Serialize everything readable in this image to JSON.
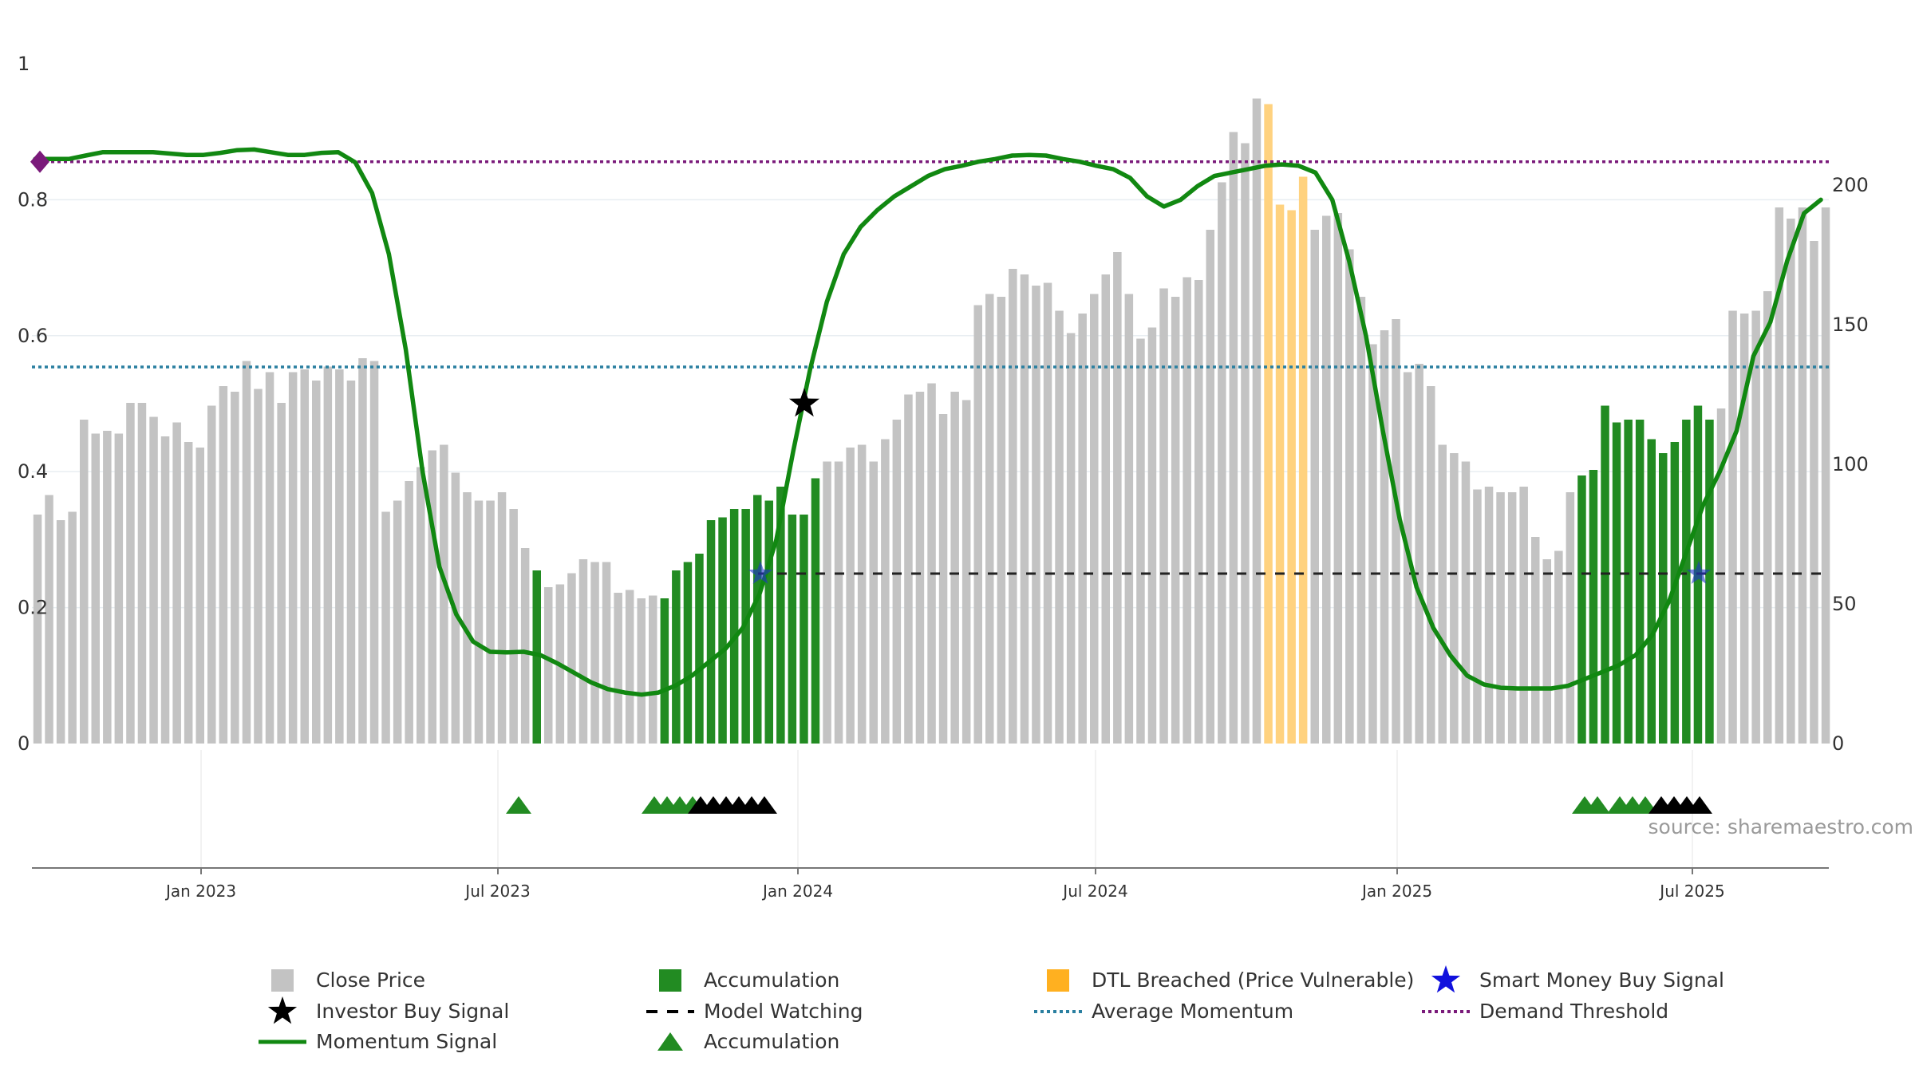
{
  "chart_data": {
    "type": "bar",
    "title": "",
    "source_label": "source: sharemaestro.com",
    "x_ticks": [
      "Jan 2023",
      "Jul 2023",
      "Jan 2024",
      "Jul 2024",
      "Jan 2025",
      "Jul 2025"
    ],
    "left_axis": {
      "ticks": [
        "0",
        "0.2",
        "0.4",
        "0.6",
        "0.8",
        "1"
      ],
      "ylim": [
        0,
        1
      ]
    },
    "right_axis": {
      "ticks": [
        "0",
        "50",
        "100",
        "150",
        "200"
      ],
      "ylim": [
        0,
        222
      ]
    },
    "grid": true,
    "legend_placement": "bottom",
    "colors": {
      "close": "#c3c3c3",
      "accumulation": "#228b22",
      "dtl": "#ffd27f",
      "momentum": "#118811",
      "average": "#2a7fa0",
      "demand": "#7a1a7a",
      "smart_money": "#2233cc",
      "watching": "#222222"
    },
    "close_prices": [
      82,
      89,
      80,
      83,
      116,
      111,
      112,
      111,
      122,
      122,
      117,
      110,
      115,
      108,
      106,
      121,
      128,
      126,
      137,
      127,
      133,
      122,
      133,
      134,
      130,
      135,
      134,
      130,
      138,
      137,
      83,
      87,
      94,
      99,
      105,
      107,
      97,
      90,
      87,
      87,
      90,
      84,
      70,
      62,
      56,
      57,
      61,
      66,
      65,
      65,
      54,
      55,
      52,
      53,
      52,
      62,
      65,
      68,
      80,
      81,
      84,
      84,
      89,
      87,
      92,
      82,
      82,
      95,
      101,
      101,
      106,
      107,
      101,
      109,
      116,
      125,
      126,
      129,
      118,
      126,
      123,
      157,
      161,
      160,
      170,
      168,
      164,
      165,
      155,
      147,
      154,
      161,
      168,
      176,
      161,
      145,
      149,
      163,
      160,
      167,
      166,
      184,
      201,
      219,
      215,
      231,
      229,
      193,
      191,
      203,
      184,
      189,
      190,
      177,
      160,
      143,
      148,
      152,
      133,
      136,
      128,
      107,
      104,
      101,
      91,
      92,
      90,
      90,
      92,
      74,
      66,
      69,
      90,
      96,
      98,
      121,
      115,
      116,
      116,
      109,
      104,
      108,
      116,
      121,
      116,
      120,
      155,
      154,
      155,
      162,
      192,
      188,
      192,
      180,
      192
    ],
    "accumulation_bars": [
      43,
      54,
      55,
      56,
      57,
      58,
      59,
      60,
      61,
      62,
      63,
      64,
      65,
      66,
      67,
      133,
      134,
      135,
      136,
      137,
      138,
      139,
      140,
      141,
      142,
      143,
      144
    ],
    "dtl_bars": [
      106,
      107,
      108,
      109
    ],
    "momentum": [
      0.86,
      0.86,
      0.86,
      0.865,
      0.87,
      0.87,
      0.87,
      0.87,
      0.868,
      0.866,
      0.866,
      0.869,
      0.873,
      0.874,
      0.87,
      0.866,
      0.866,
      0.869,
      0.87,
      0.855,
      0.81,
      0.72,
      0.58,
      0.4,
      0.26,
      0.19,
      0.15,
      0.135,
      0.134,
      0.135,
      0.13,
      0.118,
      0.104,
      0.09,
      0.08,
      0.075,
      0.072,
      0.075,
      0.085,
      0.1,
      0.12,
      0.14,
      0.17,
      0.22,
      0.3,
      0.43,
      0.55,
      0.65,
      0.72,
      0.76,
      0.785,
      0.805,
      0.82,
      0.835,
      0.845,
      0.85,
      0.856,
      0.86,
      0.865,
      0.866,
      0.865,
      0.86,
      0.856,
      0.85,
      0.845,
      0.832,
      0.805,
      0.79,
      0.8,
      0.82,
      0.835,
      0.84,
      0.845,
      0.85,
      0.852,
      0.85,
      0.84,
      0.8,
      0.71,
      0.6,
      0.46,
      0.33,
      0.23,
      0.17,
      0.13,
      0.1,
      0.087,
      0.082,
      0.081,
      0.081,
      0.081,
      0.085,
      0.095,
      0.105,
      0.115,
      0.13,
      0.16,
      0.21,
      0.28,
      0.35,
      0.4,
      0.46,
      0.57,
      0.62,
      0.71,
      0.78,
      0.8
    ],
    "average_momentum": 0.554,
    "demand_threshold": 0.856,
    "investor_buy_signal": {
      "date": "Jan 2024",
      "momentum": 0.5
    },
    "smart_money_signals": [
      "Dec 2023",
      "Jul 2025"
    ],
    "model_watching_level": 0.25,
    "markers": {
      "accumulation": [
        "Jul 2023",
        "Oct 2023",
        "Oct 2023",
        "Nov 2023",
        "May 2025",
        "May 2025",
        "Jun 2025",
        "Jun 2025",
        "Jun 2025"
      ],
      "watching": [
        "Nov 2023",
        "Nov 2023",
        "Nov 2023",
        "Dec 2023",
        "Dec 2023",
        "Dec 2023",
        "Jun 2025",
        "Jun 2025",
        "Jul 2025",
        "Jul 2025"
      ]
    },
    "legend": [
      "Close Price",
      "Accumulation",
      "DTL Breached (Price Vulnerable)",
      "Smart Money Buy Signal",
      "Investor Buy Signal",
      "Model Watching",
      "Average Momentum",
      "Demand Threshold",
      "Momentum Signal",
      "Accumulation"
    ]
  }
}
